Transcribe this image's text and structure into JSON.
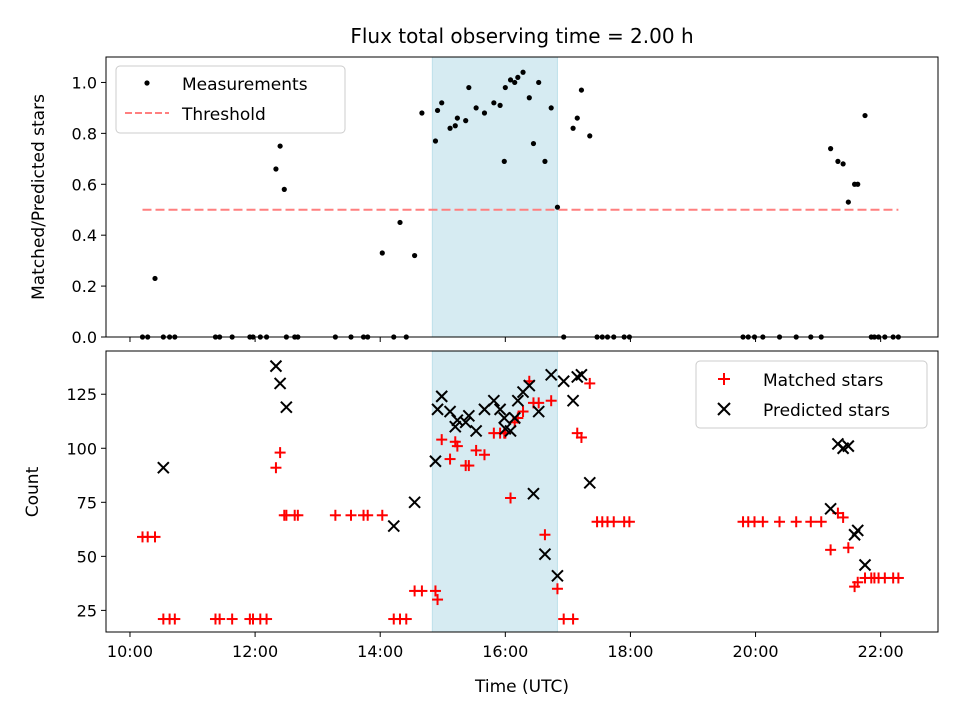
{
  "chart_data": [
    {
      "type": "scatter",
      "title": "Flux total observing time = 2.00 h",
      "xlabel": "",
      "ylabel": "Matched/Predicted stars",
      "xlim": [
        "09:37",
        "22:55"
      ],
      "ylim": [
        0,
        1.1
      ],
      "yticks": [
        0.0,
        0.2,
        0.4,
        0.6,
        0.8,
        1.0
      ],
      "ytick_labels": [
        "0.0",
        "0.2",
        "0.4",
        "0.6",
        "0.8",
        "1.0"
      ],
      "legend_position": "upper left",
      "highlight_span": {
        "from": "14:50",
        "to": "16:50",
        "color": "#add8e6"
      },
      "threshold": {
        "from": "10:12",
        "to": "22:17",
        "value": 0.5,
        "color": "#ff7f7f"
      },
      "series": [
        {
          "name": "Measurements",
          "marker": "point",
          "color": "#000000",
          "x": [
            "10:12",
            "10:17",
            "10:24",
            "10:32",
            "10:38",
            "10:43",
            "11:22",
            "11:26",
            "11:38",
            "11:55",
            "11:58",
            "12:05",
            "12:11",
            "12:20",
            "12:24",
            "12:28",
            "12:30",
            "12:38",
            "12:41",
            "13:17",
            "13:32",
            "13:44",
            "13:48",
            "14:02",
            "14:13",
            "14:19",
            "14:25",
            "14:33",
            "14:40",
            "14:53",
            "14:55",
            "14:59",
            "15:07",
            "15:12",
            "15:14",
            "15:22",
            "15:25",
            "15:32",
            "15:40",
            "15:49",
            "15:55",
            "15:59",
            "16:00",
            "16:05",
            "16:09",
            "16:12",
            "16:17",
            "16:23",
            "16:27",
            "16:32",
            "16:38",
            "16:44",
            "16:50",
            "16:56",
            "17:05",
            "17:09",
            "17:13",
            "17:21",
            "17:28",
            "17:33",
            "17:38",
            "17:44",
            "17:54",
            "17:59",
            "19:48",
            "19:53",
            "19:59",
            "20:07",
            "20:23",
            "20:39",
            "20:53",
            "21:03",
            "21:12",
            "21:19",
            "21:24",
            "21:29",
            "21:35",
            "21:38",
            "21:45",
            "21:51",
            "21:54",
            "21:58",
            "22:04",
            "22:12",
            "22:17"
          ],
          "y": [
            0,
            0,
            0.23,
            0,
            0,
            0,
            0,
            0,
            0,
            0,
            0,
            0,
            0,
            0.66,
            0.75,
            0.58,
            0,
            0,
            0,
            0,
            0,
            0,
            0,
            0.33,
            0,
            0.45,
            0,
            0.32,
            0.88,
            0.77,
            0.89,
            0.92,
            0.82,
            0.83,
            0.86,
            0.85,
            0.98,
            0.9,
            0.88,
            0.92,
            0.91,
            0.69,
            0.98,
            1.01,
            1.0,
            1.02,
            1.04,
            0.94,
            0.76,
            1.0,
            0.69,
            0.9,
            0.51,
            0,
            0.82,
            0.86,
            0.97,
            0.79,
            0,
            0,
            0,
            0,
            0,
            0,
            0,
            0,
            0,
            0,
            0,
            0,
            0,
            0,
            0.74,
            0.69,
            0.68,
            0.53,
            0.6,
            0.6,
            0.87,
            0,
            0,
            0,
            0,
            0,
            0
          ]
        },
        {
          "name": "Threshold",
          "marker": "dashed-line",
          "color": "#ff7f7f"
        }
      ]
    },
    {
      "type": "scatter",
      "title": "",
      "xlabel": "Time (UTC)",
      "ylabel": "Count",
      "xlim": [
        "09:37",
        "22:55"
      ],
      "ylim": [
        15,
        145
      ],
      "yticks": [
        25,
        50,
        75,
        100,
        125
      ],
      "ytick_labels": [
        "25",
        "50",
        "75",
        "100",
        "125"
      ],
      "xticks": [
        "10:00",
        "12:00",
        "14:00",
        "16:00",
        "18:00",
        "20:00",
        "22:00"
      ],
      "xtick_labels": [
        "10:00",
        "12:00",
        "14:00",
        "16:00",
        "18:00",
        "20:00",
        "22:00"
      ],
      "legend_position": "upper right",
      "highlight_span": {
        "from": "14:50",
        "to": "16:50",
        "color": "#add8e6"
      },
      "series": [
        {
          "name": "Matched stars",
          "marker": "plus",
          "color": "#ff0000",
          "x": [
            "10:12",
            "10:17",
            "10:24",
            "10:32",
            "10:38",
            "10:43",
            "11:22",
            "11:26",
            "11:38",
            "11:55",
            "11:58",
            "12:05",
            "12:11",
            "12:20",
            "12:24",
            "12:28",
            "12:30",
            "12:38",
            "12:41",
            "13:17",
            "13:32",
            "13:44",
            "13:48",
            "14:02",
            "14:13",
            "14:19",
            "14:25",
            "14:33",
            "14:40",
            "14:53",
            "14:55",
            "14:59",
            "15:07",
            "15:12",
            "15:14",
            "15:22",
            "15:25",
            "15:32",
            "15:40",
            "15:49",
            "15:55",
            "15:59",
            "16:00",
            "16:05",
            "16:09",
            "16:12",
            "16:17",
            "16:23",
            "16:27",
            "16:32",
            "16:38",
            "16:44",
            "16:50",
            "16:56",
            "17:05",
            "17:09",
            "17:13",
            "17:21",
            "17:28",
            "17:33",
            "17:38",
            "17:44",
            "17:54",
            "17:59",
            "19:48",
            "19:53",
            "19:59",
            "20:07",
            "20:23",
            "20:39",
            "20:53",
            "21:03",
            "21:12",
            "21:19",
            "21:24",
            "21:29",
            "21:35",
            "21:38",
            "21:45",
            "21:51",
            "21:54",
            "21:58",
            "22:04",
            "22:12",
            "22:17"
          ],
          "y": [
            59,
            59,
            59,
            21,
            21,
            21,
            21,
            21,
            21,
            21,
            21,
            21,
            21,
            91,
            98,
            69,
            69,
            69,
            69,
            69,
            69,
            69,
            69,
            69,
            21,
            21,
            21,
            34,
            34,
            34,
            30,
            104,
            95,
            103,
            101,
            92,
            92,
            99,
            97,
            107,
            107,
            107,
            107,
            77,
            112,
            114,
            117,
            131,
            121,
            121,
            60,
            122,
            35,
            21,
            21,
            107,
            105,
            130,
            66,
            66,
            66,
            66,
            66,
            66,
            66,
            66,
            66,
            66,
            66,
            66,
            66,
            66,
            53,
            70,
            68,
            54,
            36,
            38,
            40,
            40,
            40,
            40,
            40,
            40,
            40
          ],
          "x_fix_note": ""
        },
        {
          "name": "Predicted stars",
          "marker": "x",
          "color": "#000000",
          "x": [
            "10:32",
            "12:20",
            "12:24",
            "12:30",
            "14:13",
            "14:33",
            "14:53",
            "14:55",
            "14:59",
            "15:07",
            "15:12",
            "15:14",
            "15:22",
            "15:25",
            "15:32",
            "15:40",
            "15:49",
            "15:55",
            "15:59",
            "16:00",
            "16:05",
            "16:09",
            "16:12",
            "16:17",
            "16:23",
            "16:27",
            "16:32",
            "16:38",
            "16:44",
            "16:50",
            "16:56",
            "17:05",
            "17:09",
            "17:13",
            "17:21",
            "21:12",
            "21:19",
            "21:24",
            "21:29",
            "21:35",
            "21:38",
            "21:45"
          ],
          "y": [
            91,
            138,
            130,
            119,
            64,
            75,
            94,
            118,
            124,
            117,
            110,
            113,
            112,
            115,
            108,
            118,
            122,
            118,
            114,
            109,
            108,
            114,
            122,
            126,
            129,
            79,
            117,
            51,
            134,
            41,
            131,
            122,
            133,
            134,
            84,
            72,
            102,
            100,
            101,
            60,
            62,
            46
          ]
        }
      ]
    }
  ]
}
